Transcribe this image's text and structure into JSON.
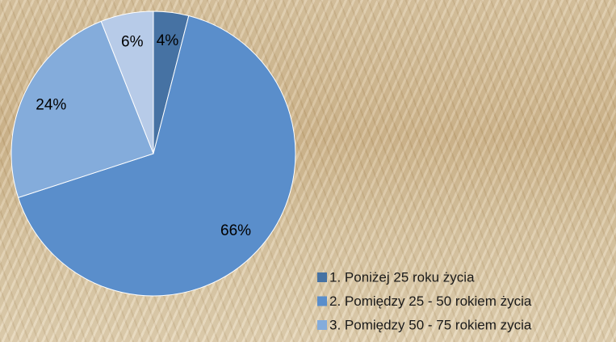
{
  "chart_data": {
    "type": "pie",
    "categories": [
      "1. Poniżej 25 roku życia",
      "2. Pomiędzy 25 - 50 rokiem życia",
      "3. Pomiędzy 50 - 75 rokiem zycia",
      null
    ],
    "values": [
      4,
      66,
      24,
      6
    ],
    "value_labels": [
      "4%",
      "66%",
      "24%",
      "6%"
    ],
    "colors": [
      "#4672a3",
      "#5a8ecb",
      "#84acdb",
      "#b7cbe8"
    ],
    "legend": "bottom-right"
  }
}
